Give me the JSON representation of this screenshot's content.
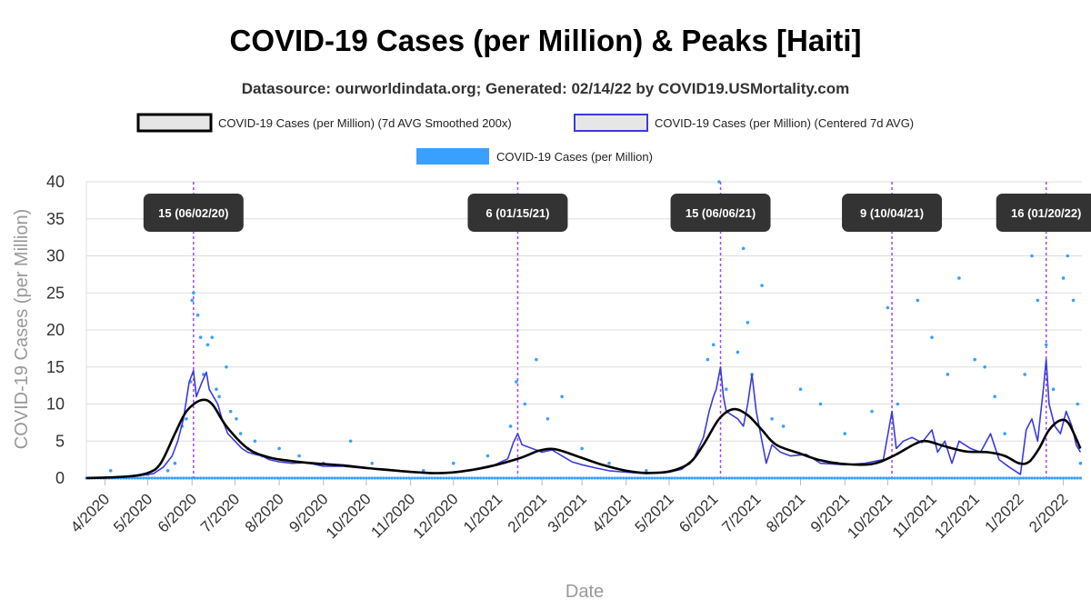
{
  "chart_data": {
    "type": "line",
    "title": "COVID-19 Cases (per Million) & Peaks [Haiti]",
    "subtitle": "Datasource: ourworldindata.org; Generated: 02/14/22 by COVID19.USMortality.com",
    "xlabel": "Date",
    "ylabel": "COVID-19 Cases (per Million)",
    "ylim": [
      0,
      40
    ],
    "yticks": [
      0,
      5,
      10,
      15,
      20,
      25,
      30,
      35,
      40
    ],
    "xticks": [
      "4/2020",
      "5/2020",
      "6/2020",
      "7/2020",
      "8/2020",
      "9/2020",
      "10/2020",
      "11/2020",
      "12/2020",
      "1/2021",
      "2/2021",
      "3/2021",
      "4/2021",
      "5/2021",
      "6/2021",
      "7/2021",
      "8/2021",
      "9/2021",
      "10/2021",
      "11/2021",
      "12/2021",
      "1/2022",
      "2/2022"
    ],
    "grid": true,
    "legend_position": "top",
    "colors": {
      "smoothed": "#000000",
      "avg7": "#3b3bdb",
      "daily": "#3aa0ff",
      "peak_line": "#a044ff",
      "peak_label_bg": "#333333"
    },
    "series": [
      {
        "name": "COVID-19 Cases (per Million) (7d AVG Smoothed 200x)",
        "style": "line",
        "points": [
          [
            "2020-03-19",
            0
          ],
          [
            "2020-04-15",
            0.2
          ],
          [
            "2020-05-01",
            0.7
          ],
          [
            "2020-05-10",
            2
          ],
          [
            "2020-05-20",
            6
          ],
          [
            "2020-05-28",
            9
          ],
          [
            "2020-06-07",
            10.5
          ],
          [
            "2020-06-15",
            10
          ],
          [
            "2020-06-25",
            7
          ],
          [
            "2020-07-10",
            4
          ],
          [
            "2020-07-25",
            2.8
          ],
          [
            "2020-08-10",
            2.3
          ],
          [
            "2020-08-25",
            2.0
          ],
          [
            "2020-09-15",
            1.7
          ],
          [
            "2020-10-10",
            1.2
          ],
          [
            "2020-11-05",
            0.8
          ],
          [
            "2020-11-25",
            0.7
          ],
          [
            "2020-12-20",
            1.3
          ],
          [
            "2021-01-15",
            2.6
          ],
          [
            "2021-01-30",
            3.7
          ],
          [
            "2021-02-10",
            3.9
          ],
          [
            "2021-02-25",
            3.0
          ],
          [
            "2021-03-15",
            1.8
          ],
          [
            "2021-04-01",
            1.0
          ],
          [
            "2021-04-15",
            0.7
          ],
          [
            "2021-05-01",
            0.9
          ],
          [
            "2021-05-15",
            2.0
          ],
          [
            "2021-05-25",
            4.5
          ],
          [
            "2021-06-05",
            8.0
          ],
          [
            "2021-06-15",
            9.3
          ],
          [
            "2021-06-25",
            8.5
          ],
          [
            "2021-07-05",
            6.5
          ],
          [
            "2021-07-15",
            4.5
          ],
          [
            "2021-08-01",
            3.3
          ],
          [
            "2021-08-15",
            2.4
          ],
          [
            "2021-09-01",
            1.9
          ],
          [
            "2021-09-20",
            1.9
          ],
          [
            "2021-10-05",
            3.0
          ],
          [
            "2021-10-20",
            4.6
          ],
          [
            "2021-10-28",
            5.0
          ],
          [
            "2021-11-10",
            4.3
          ],
          [
            "2021-11-25",
            3.6
          ],
          [
            "2021-12-10",
            3.5
          ],
          [
            "2021-12-22",
            3.0
          ],
          [
            "2022-01-01",
            2.0
          ],
          [
            "2022-01-08",
            2.2
          ],
          [
            "2022-01-15",
            4.0
          ],
          [
            "2022-01-22",
            6.5
          ],
          [
            "2022-01-30",
            7.8
          ],
          [
            "2022-02-05",
            7.3
          ],
          [
            "2022-02-13",
            4.0
          ]
        ]
      },
      {
        "name": "COVID-19 Cases (per Million) (Centered 7d AVG)",
        "style": "line",
        "points": [
          [
            "2020-03-19",
            0
          ],
          [
            "2020-04-20",
            0.2
          ],
          [
            "2020-05-05",
            0.6
          ],
          [
            "2020-05-12",
            1.5
          ],
          [
            "2020-05-18",
            3
          ],
          [
            "2020-05-22",
            5
          ],
          [
            "2020-05-26",
            8
          ],
          [
            "2020-05-30",
            13
          ],
          [
            "2020-06-02",
            14.5
          ],
          [
            "2020-06-04",
            11
          ],
          [
            "2020-06-06",
            12
          ],
          [
            "2020-06-08",
            13
          ],
          [
            "2020-06-11",
            14.3
          ],
          [
            "2020-06-13",
            12
          ],
          [
            "2020-06-16",
            11
          ],
          [
            "2020-06-19",
            10
          ],
          [
            "2020-06-22",
            8
          ],
          [
            "2020-06-26",
            6
          ],
          [
            "2020-07-01",
            5
          ],
          [
            "2020-07-06",
            4
          ],
          [
            "2020-07-10",
            3.5
          ],
          [
            "2020-07-15",
            3.2
          ],
          [
            "2020-07-20",
            3.0
          ],
          [
            "2020-07-25",
            2.5
          ],
          [
            "2020-08-01",
            2.2
          ],
          [
            "2020-08-10",
            2.0
          ],
          [
            "2020-08-20",
            2.1
          ],
          [
            "2020-09-01",
            1.6
          ],
          [
            "2020-09-15",
            1.6
          ],
          [
            "2020-10-01",
            1.3
          ],
          [
            "2020-10-15",
            1.2
          ],
          [
            "2020-11-01",
            0.8
          ],
          [
            "2020-11-15",
            0.6
          ],
          [
            "2020-12-01",
            0.8
          ],
          [
            "2020-12-15",
            1.2
          ],
          [
            "2020-12-30",
            1.8
          ],
          [
            "2021-01-08",
            2.6
          ],
          [
            "2021-01-12",
            4.8
          ],
          [
            "2021-01-15",
            6.0
          ],
          [
            "2021-01-18",
            4.5
          ],
          [
            "2021-01-25",
            4.0
          ],
          [
            "2021-02-01",
            3.5
          ],
          [
            "2021-02-08",
            3.8
          ],
          [
            "2021-02-15",
            3.0
          ],
          [
            "2021-02-22",
            2.2
          ],
          [
            "2021-03-01",
            1.8
          ],
          [
            "2021-03-10",
            1.4
          ],
          [
            "2021-03-20",
            1.0
          ],
          [
            "2021-04-01",
            0.8
          ],
          [
            "2021-04-15",
            0.6
          ],
          [
            "2021-05-01",
            0.8
          ],
          [
            "2021-05-10",
            1.2
          ],
          [
            "2021-05-18",
            2.5
          ],
          [
            "2021-05-25",
            5.5
          ],
          [
            "2021-05-29",
            9
          ],
          [
            "2021-06-01",
            11
          ],
          [
            "2021-06-03",
            12
          ],
          [
            "2021-06-06",
            15
          ],
          [
            "2021-06-08",
            11
          ],
          [
            "2021-06-10",
            9
          ],
          [
            "2021-06-14",
            8.5
          ],
          [
            "2021-06-18",
            8
          ],
          [
            "2021-06-22",
            7
          ],
          [
            "2021-06-25",
            10
          ],
          [
            "2021-06-28",
            14
          ],
          [
            "2021-07-01",
            9
          ],
          [
            "2021-07-04",
            6
          ],
          [
            "2021-07-08",
            2
          ],
          [
            "2021-07-12",
            4.5
          ],
          [
            "2021-07-18",
            3.5
          ],
          [
            "2021-07-25",
            3.0
          ],
          [
            "2021-08-05",
            3.2
          ],
          [
            "2021-08-15",
            2.0
          ],
          [
            "2021-09-01",
            1.8
          ],
          [
            "2021-09-15",
            2.0
          ],
          [
            "2021-09-28",
            2.5
          ],
          [
            "2021-10-04",
            9
          ],
          [
            "2021-10-07",
            4
          ],
          [
            "2021-10-12",
            5
          ],
          [
            "2021-10-18",
            5.5
          ],
          [
            "2021-10-25",
            4.8
          ],
          [
            "2021-11-01",
            6.5
          ],
          [
            "2021-11-05",
            3.5
          ],
          [
            "2021-11-10",
            5
          ],
          [
            "2021-11-15",
            2
          ],
          [
            "2021-11-20",
            5
          ],
          [
            "2021-11-28",
            4
          ],
          [
            "2021-12-05",
            3.5
          ],
          [
            "2021-12-12",
            6
          ],
          [
            "2021-12-18",
            2.5
          ],
          [
            "2021-12-25",
            1.5
          ],
          [
            "2022-01-02",
            0.5
          ],
          [
            "2022-01-06",
            6.5
          ],
          [
            "2022-01-10",
            8
          ],
          [
            "2022-01-14",
            5
          ],
          [
            "2022-01-18",
            12
          ],
          [
            "2022-01-20",
            16
          ],
          [
            "2022-01-22",
            10
          ],
          [
            "2022-01-26",
            7
          ],
          [
            "2022-01-30",
            6
          ],
          [
            "2022-02-03",
            9
          ],
          [
            "2022-02-07",
            7
          ],
          [
            "2022-02-10",
            4.5
          ],
          [
            "2022-02-13",
            3.5
          ]
        ]
      },
      {
        "name": "COVID-19 Cases (per Million)",
        "style": "scatter",
        "points": [
          [
            "2020-04-05",
            1
          ],
          [
            "2020-05-01",
            0.5
          ],
          [
            "2020-05-15",
            1
          ],
          [
            "2020-05-20",
            2
          ],
          [
            "2020-05-25",
            7
          ],
          [
            "2020-05-28",
            8
          ],
          [
            "2020-05-31",
            13
          ],
          [
            "2020-06-01",
            24
          ],
          [
            "2020-06-02",
            25
          ],
          [
            "2020-06-05",
            22
          ],
          [
            "2020-06-07",
            19
          ],
          [
            "2020-06-09",
            14
          ],
          [
            "2020-06-12",
            18
          ],
          [
            "2020-06-15",
            19
          ],
          [
            "2020-06-18",
            12
          ],
          [
            "2020-06-20",
            11
          ],
          [
            "2020-06-25",
            15
          ],
          [
            "2020-06-28",
            9
          ],
          [
            "2020-07-02",
            8
          ],
          [
            "2020-07-05",
            6
          ],
          [
            "2020-07-10",
            4
          ],
          [
            "2020-07-15",
            5
          ],
          [
            "2020-07-20",
            3
          ],
          [
            "2020-08-01",
            4
          ],
          [
            "2020-08-15",
            3
          ],
          [
            "2020-09-01",
            2
          ],
          [
            "2020-09-20",
            5
          ],
          [
            "2020-10-05",
            2
          ],
          [
            "2020-11-10",
            1
          ],
          [
            "2020-12-01",
            2
          ],
          [
            "2020-12-25",
            3
          ],
          [
            "2021-01-10",
            7
          ],
          [
            "2021-01-14",
            13
          ],
          [
            "2021-01-20",
            10
          ],
          [
            "2021-01-28",
            16
          ],
          [
            "2021-02-05",
            8
          ],
          [
            "2021-02-15",
            11
          ],
          [
            "2021-03-01",
            4
          ],
          [
            "2021-03-20",
            2
          ],
          [
            "2021-04-15",
            1
          ],
          [
            "2021-05-15",
            2
          ],
          [
            "2021-05-28",
            16
          ],
          [
            "2021-06-01",
            18
          ],
          [
            "2021-06-05",
            40
          ],
          [
            "2021-06-10",
            12
          ],
          [
            "2021-06-18",
            17
          ],
          [
            "2021-06-22",
            31
          ],
          [
            "2021-06-25",
            21
          ],
          [
            "2021-06-28",
            14
          ],
          [
            "2021-07-05",
            26
          ],
          [
            "2021-07-12",
            8
          ],
          [
            "2021-07-20",
            7
          ],
          [
            "2021-08-01",
            12
          ],
          [
            "2021-08-15",
            10
          ],
          [
            "2021-09-01",
            6
          ],
          [
            "2021-09-20",
            9
          ],
          [
            "2021-10-01",
            23
          ],
          [
            "2021-10-08",
            10
          ],
          [
            "2021-10-22",
            24
          ],
          [
            "2021-11-01",
            19
          ],
          [
            "2021-11-12",
            14
          ],
          [
            "2021-11-20",
            27
          ],
          [
            "2021-12-01",
            16
          ],
          [
            "2021-12-08",
            15
          ],
          [
            "2021-12-15",
            11
          ],
          [
            "2021-12-22",
            6
          ],
          [
            "2022-01-05",
            14
          ],
          [
            "2022-01-10",
            30
          ],
          [
            "2022-01-14",
            24
          ],
          [
            "2022-01-20",
            18
          ],
          [
            "2022-01-25",
            12
          ],
          [
            "2022-02-01",
            27
          ],
          [
            "2022-02-04",
            30
          ],
          [
            "2022-02-08",
            24
          ],
          [
            "2022-02-11",
            10
          ],
          [
            "2022-02-13",
            2
          ]
        ]
      }
    ],
    "peaks": [
      {
        "date": "2020-06-02",
        "label": "15 (06/02/20)"
      },
      {
        "date": "2021-01-15",
        "label": "6 (01/15/21)"
      },
      {
        "date": "2021-06-06",
        "label": "15 (06/06/21)"
      },
      {
        "date": "2021-10-04",
        "label": "9 (10/04/21)"
      },
      {
        "date": "2022-01-20",
        "label": "16 (01/20/22)"
      }
    ]
  }
}
